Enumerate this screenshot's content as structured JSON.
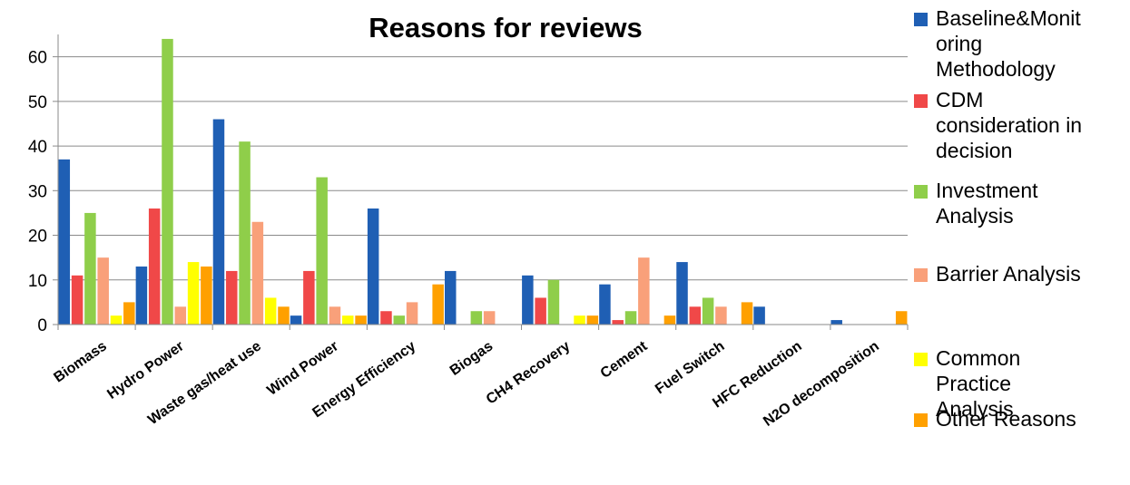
{
  "chart_data": {
    "type": "bar",
    "title": "Reasons for reviews",
    "xlabel": "",
    "ylabel": "",
    "ylim": [
      0,
      65
    ],
    "yticks": [
      0,
      10,
      20,
      30,
      40,
      50,
      60
    ],
    "grid": "horizontal",
    "legend_position": "right",
    "categories": [
      "Biomass",
      "Hydro Power",
      "Waste gas/heat use",
      "Wind Power",
      "Energy Efficiency",
      "Biogas",
      "CH4 Recovery",
      "Cement",
      "Fuel Switch",
      "HFC Reduction",
      "N2O decomposition"
    ],
    "series": [
      {
        "name": "Baseline&Monitoring Methodology",
        "legend_lines": [
          "Baseline&Monit",
          "oring",
          "Methodology"
        ],
        "color": "#1f5fb4",
        "values": [
          37,
          13,
          46,
          2,
          26,
          12,
          11,
          9,
          14,
          4,
          1
        ]
      },
      {
        "name": "CDM consideration in decision",
        "legend_lines": [
          "CDM",
          "consideration in",
          "decision"
        ],
        "color": "#f04848",
        "values": [
          11,
          26,
          12,
          12,
          3,
          0,
          6,
          1,
          4,
          0,
          0
        ]
      },
      {
        "name": "Investment Analysis",
        "legend_lines": [
          "Investment",
          "Analysis"
        ],
        "color": "#8fce4a",
        "values": [
          25,
          64,
          41,
          33,
          2,
          3,
          10,
          3,
          6,
          0,
          0
        ]
      },
      {
        "name": "Barrier Analysis",
        "legend_lines": [
          "Barrier Analysis"
        ],
        "color": "#f9a07a",
        "values": [
          15,
          4,
          23,
          4,
          5,
          3,
          0,
          15,
          4,
          0,
          0
        ]
      },
      {
        "name": "Common Practice Analysis",
        "legend_lines": [
          " Common",
          "Practice",
          "Analysis"
        ],
        "color": "#ffff00",
        "values": [
          2,
          14,
          6,
          2,
          0,
          0,
          2,
          0,
          0,
          0,
          0
        ]
      },
      {
        "name": "Other Reasons",
        "legend_lines": [
          "Other Reasons"
        ],
        "color": "#ffa000",
        "values": [
          5,
          13,
          4,
          2,
          9,
          0,
          2,
          2,
          5,
          0,
          3
        ]
      }
    ]
  }
}
